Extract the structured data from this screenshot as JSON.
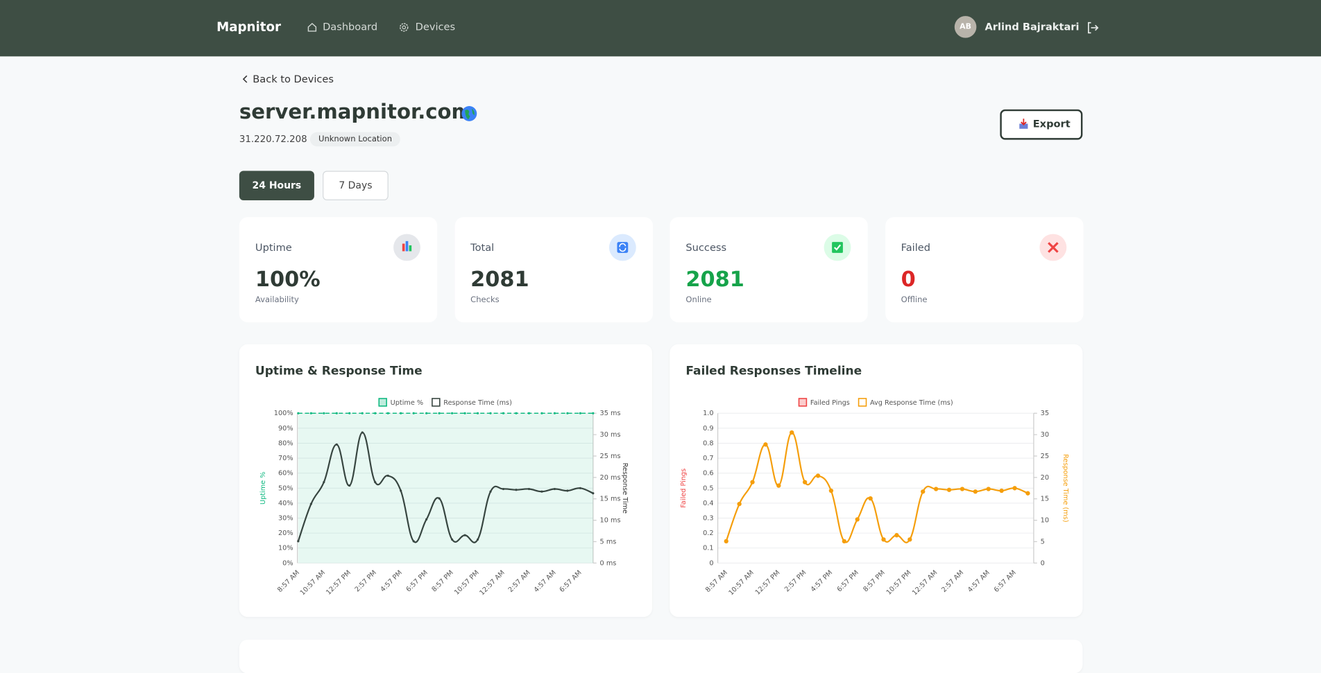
{
  "header": {
    "brand": "Mapnitor",
    "nav": [
      "Dashboard",
      "Devices"
    ],
    "user_initials": "AB",
    "user_name": "Arlind Bajraktari"
  },
  "page": {
    "back": "Back to Devices",
    "title": "server.mapnitor.com",
    "ip": "31.220.72.208",
    "location": "Unknown Location",
    "export": "Export",
    "ranges": [
      "24 Hours",
      "7 Days"
    ]
  },
  "stats": [
    {
      "label": "Uptime",
      "value": "100%",
      "sub": "Availability",
      "color": "#2f3b35"
    },
    {
      "label": "Total",
      "value": "2081",
      "sub": "Checks",
      "color": "#2f3b35"
    },
    {
      "label": "Success",
      "value": "2081",
      "sub": "Online",
      "color": "#16a34a"
    },
    {
      "label": "Failed",
      "value": "0",
      "sub": "Offline",
      "color": "#dc2626"
    }
  ],
  "chart_data": [
    {
      "type": "line",
      "title": "Uptime & Response Time",
      "categories": [
        "8:57 AM",
        null,
        "10:57 AM",
        null,
        "12:57 PM",
        null,
        "2:57 PM",
        null,
        "4:57 PM",
        null,
        "6:57 PM",
        null,
        "8:57 PM",
        null,
        "10:57 PM",
        null,
        "12:57 AM",
        null,
        "2:57 AM",
        null,
        "4:57 AM",
        null,
        "6:57 AM",
        null
      ],
      "series": [
        {
          "name": "Uptime %",
          "color": "#10b981",
          "fill": true,
          "values": [
            100,
            100,
            100,
            100,
            100,
            100,
            100,
            100,
            100,
            100,
            100,
            100,
            100,
            100,
            100,
            100,
            100,
            100,
            100,
            100,
            100,
            100,
            100,
            100
          ]
        },
        {
          "name": "Response Time (ms)",
          "color": "#374540",
          "axis": "y2",
          "values": [
            5.1,
            13.8,
            18.9,
            27.7,
            18.1,
            30.5,
            18.9,
            20.4,
            16.9,
            5.1,
            10.2,
            15.1,
            5.5,
            6.5,
            5.5,
            16.7,
            17.3,
            17.1,
            17.3,
            16.7,
            17.3,
            16.9,
            17.5,
            16.3
          ]
        }
      ],
      "ylabel": "Uptime %",
      "y2label": "Response Time",
      "ylim": [
        0,
        100
      ],
      "yticks": [
        {
          "value": 0,
          "label": "0%"
        },
        {
          "value": 10,
          "label": "10%"
        },
        {
          "value": 20,
          "label": "20%"
        },
        {
          "value": 30,
          "label": "30%"
        },
        {
          "value": 40,
          "label": "40%"
        },
        {
          "value": 50,
          "label": "50%"
        },
        {
          "value": 60,
          "label": "60%"
        },
        {
          "value": 70,
          "label": "70%"
        },
        {
          "value": 80,
          "label": "80%"
        },
        {
          "value": 90,
          "label": "90%"
        },
        {
          "value": 100,
          "label": "100%"
        }
      ],
      "y2lim": [
        0,
        35
      ],
      "y2ticks": [
        {
          "value": 0,
          "label": "0 ms"
        },
        {
          "value": 5,
          "label": "5 ms"
        },
        {
          "value": 10,
          "label": "10 ms"
        },
        {
          "value": 15,
          "label": "15 ms"
        },
        {
          "value": 20,
          "label": "20 ms"
        },
        {
          "value": 25,
          "label": "25 ms"
        },
        {
          "value": 30,
          "label": "30 ms"
        },
        {
          "value": 35,
          "label": "35 ms"
        }
      ]
    },
    {
      "type": "bar",
      "title": "Failed Responses Timeline",
      "categories": [
        "8:57 AM",
        null,
        "10:57 AM",
        null,
        "12:57 PM",
        null,
        "2:57 PM",
        null,
        "4:57 PM",
        null,
        "6:57 PM",
        null,
        "8:57 PM",
        null,
        "10:57 PM",
        null,
        "12:57 AM",
        null,
        "2:57 AM",
        null,
        "4:57 AM",
        null,
        "6:57 AM",
        null
      ],
      "series": [
        {
          "name": "Failed Pings",
          "color": "#ef4444",
          "values": [
            0,
            0,
            0,
            0,
            0,
            0,
            0,
            0,
            0,
            0,
            0,
            0,
            0,
            0,
            0,
            0,
            0,
            0,
            0,
            0,
            0,
            0,
            0,
            0
          ]
        },
        {
          "name": "Avg Response Time (ms)",
          "color": "#f59e0b",
          "type": "line",
          "axis": "y2",
          "values": [
            5.1,
            13.8,
            18.9,
            27.7,
            18.1,
            30.5,
            18.9,
            20.4,
            16.9,
            5.1,
            10.2,
            15.1,
            5.5,
            6.5,
            5.5,
            16.7,
            17.3,
            17.1,
            17.3,
            16.7,
            17.3,
            16.9,
            17.5,
            16.3
          ]
        }
      ],
      "ylabel": "Failed Pings",
      "y2label": "Response Time (ms)",
      "ylim": [
        0,
        1
      ],
      "yticks": [
        0,
        0.1,
        0.2,
        0.3,
        0.4,
        0.5,
        0.6,
        0.7,
        0.8,
        0.9,
        {
          "value": 1,
          "label": "1.0"
        }
      ],
      "y2lim": [
        0,
        35
      ],
      "y2ticks": [
        0,
        5,
        10,
        15,
        20,
        25,
        30,
        35
      ]
    }
  ]
}
